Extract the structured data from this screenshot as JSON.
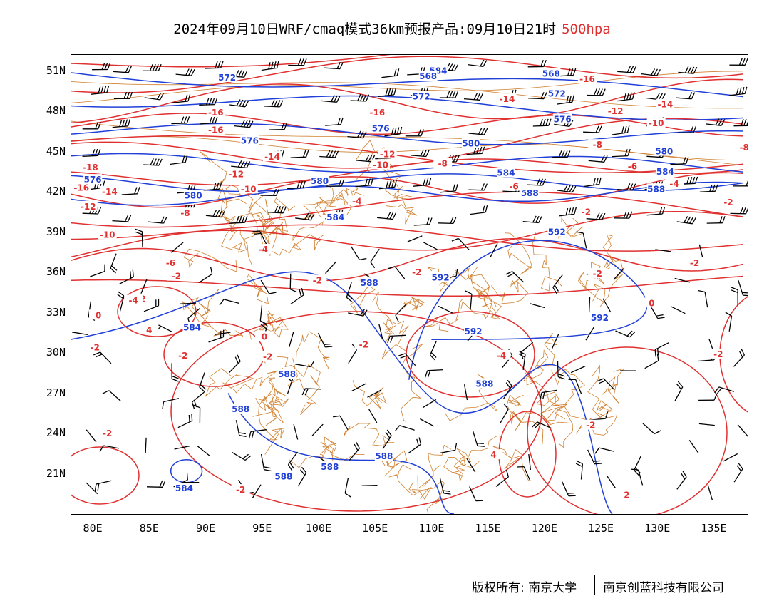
{
  "header": {
    "title": "2024年09月10日WRF/cmaq模式36km预报产品:09月10日21时",
    "level": "500hpa"
  },
  "axes": {
    "lat_labels": [
      "51N",
      "48N",
      "45N",
      "42N",
      "39N",
      "36N",
      "33N",
      "30N",
      "27N",
      "24N",
      "21N"
    ],
    "lat_values": [
      51,
      48,
      45,
      42,
      39,
      36,
      33,
      30,
      27,
      24,
      21
    ],
    "lon_labels": [
      "80E",
      "85E",
      "90E",
      "95E",
      "100E",
      "105E",
      "110E",
      "115E",
      "120E",
      "125E",
      "130E",
      "135E"
    ],
    "lon_values": [
      80,
      85,
      90,
      95,
      100,
      105,
      110,
      115,
      120,
      125,
      130,
      135
    ],
    "lon_range": [
      78,
      138
    ],
    "lat_range": [
      18,
      52
    ]
  },
  "colors": {
    "height_contour": "#2040d8",
    "temp_contour": "#e03030",
    "border": "#d08030",
    "wind_barb": "#000000"
  },
  "height_labels": [
    {
      "text": "584",
      "lon": 110.6,
      "lat": 51.0
    },
    {
      "text": "568",
      "lon": 109.7,
      "lat": 50.6
    },
    {
      "text": "568",
      "lon": 120.6,
      "lat": 50.8
    },
    {
      "text": "572",
      "lon": 91.9,
      "lat": 50.5
    },
    {
      "text": "572",
      "lon": 109.1,
      "lat": 49.1
    },
    {
      "text": "572",
      "lon": 121.1,
      "lat": 49.3
    },
    {
      "text": "576",
      "lon": 93.9,
      "lat": 45.8
    },
    {
      "text": "576",
      "lon": 105.5,
      "lat": 46.7
    },
    {
      "text": "576",
      "lon": 121.6,
      "lat": 47.4
    },
    {
      "text": "576",
      "lon": 80.0,
      "lat": 42.9
    },
    {
      "text": "580",
      "lon": 113.5,
      "lat": 45.6
    },
    {
      "text": "580",
      "lon": 88.9,
      "lat": 41.7
    },
    {
      "text": "580",
      "lon": 100.1,
      "lat": 42.8
    },
    {
      "text": "580",
      "lon": 130.6,
      "lat": 45.0
    },
    {
      "text": "584",
      "lon": 116.6,
      "lat": 43.4
    },
    {
      "text": "584",
      "lon": 101.5,
      "lat": 40.1
    },
    {
      "text": "584",
      "lon": 130.7,
      "lat": 43.5
    },
    {
      "text": "588",
      "lon": 118.7,
      "lat": 41.9
    },
    {
      "text": "588",
      "lon": 129.9,
      "lat": 42.2
    },
    {
      "text": "592",
      "lon": 121.1,
      "lat": 39.0
    },
    {
      "text": "592",
      "lon": 110.8,
      "lat": 35.6
    },
    {
      "text": "592",
      "lon": 124.9,
      "lat": 32.6
    },
    {
      "text": "592",
      "lon": 113.7,
      "lat": 31.6
    },
    {
      "text": "588",
      "lon": 104.5,
      "lat": 35.2
    },
    {
      "text": "588",
      "lon": 97.2,
      "lat": 28.4
    },
    {
      "text": "588",
      "lon": 114.7,
      "lat": 27.7
    },
    {
      "text": "588",
      "lon": 93.1,
      "lat": 25.8
    },
    {
      "text": "588",
      "lon": 105.8,
      "lat": 22.3
    },
    {
      "text": "588",
      "lon": 96.9,
      "lat": 20.8
    },
    {
      "text": "588",
      "lon": 101.0,
      "lat": 21.5
    },
    {
      "text": "584",
      "lon": 88.8,
      "lat": 31.9
    },
    {
      "text": "584",
      "lon": 88.1,
      "lat": 19.9
    }
  ],
  "temp_labels": [
    {
      "text": "-16",
      "lon": 123.8,
      "lat": 50.4
    },
    {
      "text": "-16",
      "lon": 90.9,
      "lat": 47.9
    },
    {
      "text": "-16",
      "lon": 90.9,
      "lat": 46.6
    },
    {
      "text": "-16",
      "lon": 105.2,
      "lat": 47.9
    },
    {
      "text": "-14",
      "lon": 116.7,
      "lat": 48.9
    },
    {
      "text": "-14",
      "lon": 130.7,
      "lat": 48.5
    },
    {
      "text": "-12",
      "lon": 126.3,
      "lat": 48.0
    },
    {
      "text": "-10",
      "lon": 129.9,
      "lat": 47.1
    },
    {
      "text": "-14",
      "lon": 95.9,
      "lat": 44.6
    },
    {
      "text": "-12",
      "lon": 106.1,
      "lat": 44.8
    },
    {
      "text": "-10",
      "lon": 105.5,
      "lat": 44.0
    },
    {
      "text": "-12",
      "lon": 92.7,
      "lat": 43.3
    },
    {
      "text": "-10",
      "lon": 93.8,
      "lat": 42.2
    },
    {
      "text": "-8",
      "lon": 124.7,
      "lat": 45.5
    },
    {
      "text": "-8",
      "lon": 137.7,
      "lat": 45.3
    },
    {
      "text": "-8",
      "lon": 111.0,
      "lat": 44.1
    },
    {
      "text": "-8",
      "lon": 88.2,
      "lat": 40.4
    },
    {
      "text": "-6",
      "lon": 127.8,
      "lat": 43.9
    },
    {
      "text": "-6",
      "lon": 117.3,
      "lat": 42.4
    },
    {
      "text": "-4",
      "lon": 131.5,
      "lat": 42.6
    },
    {
      "text": "-4",
      "lon": 103.4,
      "lat": 41.3
    },
    {
      "text": "-4",
      "lon": 95.1,
      "lat": 37.7
    },
    {
      "text": "-2",
      "lon": 123.7,
      "lat": 40.5
    },
    {
      "text": "-2",
      "lon": 136.3,
      "lat": 41.2
    },
    {
      "text": "-2",
      "lon": 108.7,
      "lat": 36.0
    },
    {
      "text": "-2",
      "lon": 124.7,
      "lat": 35.9
    },
    {
      "text": "-2",
      "lon": 133.3,
      "lat": 36.7
    },
    {
      "text": "-2",
      "lon": 99.9,
      "lat": 35.4
    },
    {
      "text": "-2",
      "lon": 87.4,
      "lat": 35.7
    },
    {
      "text": "-2",
      "lon": 84.3,
      "lat": 34.0
    },
    {
      "text": "-2",
      "lon": 95.5,
      "lat": 29.7
    },
    {
      "text": "-2",
      "lon": 104.0,
      "lat": 30.6
    },
    {
      "text": "-2",
      "lon": 80.2,
      "lat": 30.4
    },
    {
      "text": "-2",
      "lon": 88.0,
      "lat": 29.8
    },
    {
      "text": "-2",
      "lon": 81.3,
      "lat": 24.0
    },
    {
      "text": "-2",
      "lon": 93.1,
      "lat": 19.8
    },
    {
      "text": "-2",
      "lon": 124.1,
      "lat": 24.6
    },
    {
      "text": "-2",
      "lon": 135.4,
      "lat": 29.9
    },
    {
      "text": "-4",
      "lon": 116.2,
      "lat": 29.8
    },
    {
      "text": "-4",
      "lon": 83.6,
      "lat": 33.9
    },
    {
      "text": "-6",
      "lon": 86.9,
      "lat": 36.7
    },
    {
      "text": "-10",
      "lon": 81.3,
      "lat": 38.8
    },
    {
      "text": "-12",
      "lon": 79.6,
      "lat": 40.9
    },
    {
      "text": "-14",
      "lon": 81.5,
      "lat": 42.0
    },
    {
      "text": "-16",
      "lon": 79.0,
      "lat": 42.3
    },
    {
      "text": "-18",
      "lon": 79.8,
      "lat": 43.8
    },
    {
      "text": "0",
      "lon": 80.5,
      "lat": 32.8
    },
    {
      "text": "0",
      "lon": 95.2,
      "lat": 31.2
    },
    {
      "text": "0",
      "lon": 129.5,
      "lat": 33.7
    },
    {
      "text": "4",
      "lon": 85.0,
      "lat": 31.7
    },
    {
      "text": "4",
      "lon": 115.5,
      "lat": 22.4
    },
    {
      "text": "2",
      "lon": 127.3,
      "lat": 19.4
    }
  ],
  "footer": {
    "copyright_left": "版权所有: 南京大学",
    "copyright_right": "南京创蓝科技有限公司"
  }
}
